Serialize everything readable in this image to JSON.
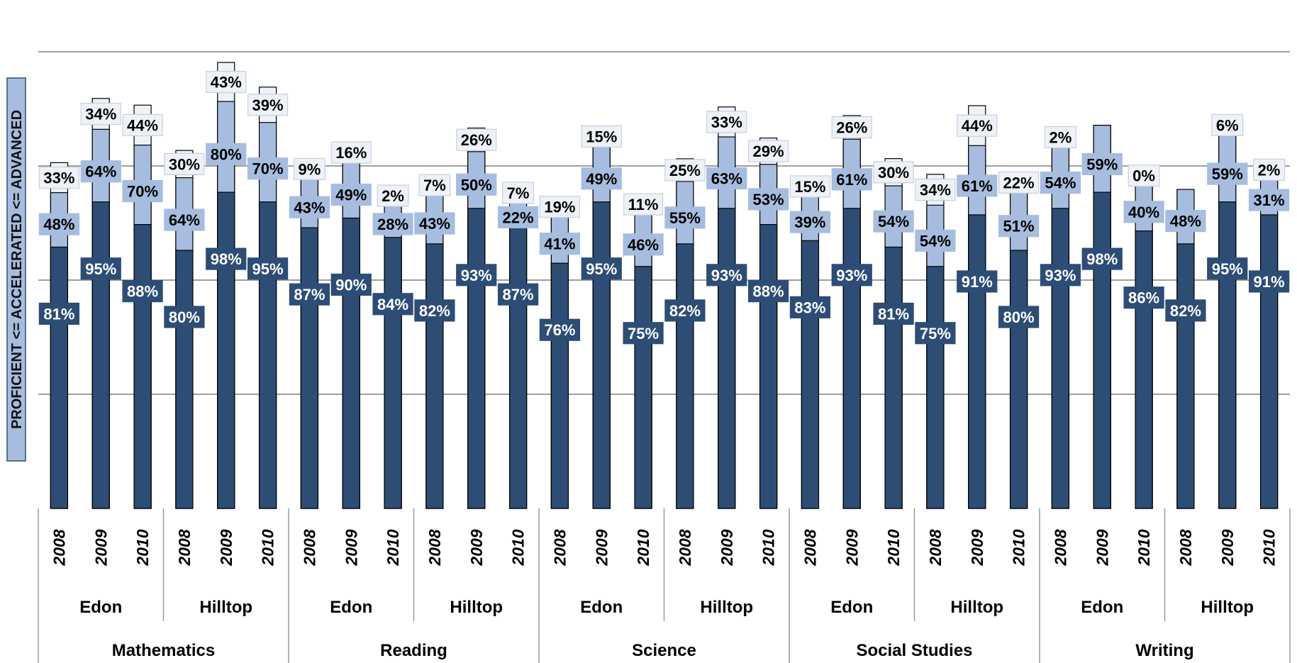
{
  "chart_data": {
    "type": "bar",
    "stacking": "overlapping-cumulative",
    "ylabel": "PROFICIENT <= ACCELERATED <= ADVANCED",
    "grid": true,
    "legend": "none",
    "ylim": [
      0,
      1.35
    ],
    "subjects": [
      {
        "name": "Mathematics",
        "schools": [
          {
            "name": "Edon",
            "years": [
              {
                "year": "2008",
                "proficient": 81,
                "accelerated": 48,
                "advanced": 33
              },
              {
                "year": "2009",
                "proficient": 95,
                "accelerated": 64,
                "advanced": 34
              },
              {
                "year": "2010",
                "proficient": 88,
                "accelerated": 70,
                "advanced": 44
              }
            ]
          },
          {
            "name": "Hilltop",
            "years": [
              {
                "year": "2008",
                "proficient": 80,
                "accelerated": 64,
                "advanced": 30
              },
              {
                "year": "2009",
                "proficient": 98,
                "accelerated": 80,
                "advanced": 43
              },
              {
                "year": "2010",
                "proficient": 95,
                "accelerated": 70,
                "advanced": 39
              }
            ]
          }
        ]
      },
      {
        "name": "Reading",
        "schools": [
          {
            "name": "Edon",
            "years": [
              {
                "year": "2008",
                "proficient": 87,
                "accelerated": 43,
                "advanced": 9
              },
              {
                "year": "2009",
                "proficient": 90,
                "accelerated": 49,
                "advanced": 16
              },
              {
                "year": "2010",
                "proficient": 84,
                "accelerated": 28,
                "advanced": 2
              }
            ]
          },
          {
            "name": "Hilltop",
            "years": [
              {
                "year": "2008",
                "proficient": 82,
                "accelerated": 43,
                "advanced": 7
              },
              {
                "year": "2009",
                "proficient": 93,
                "accelerated": 50,
                "advanced": 26
              },
              {
                "year": "2010",
                "proficient": 87,
                "accelerated": 22,
                "advanced": 7
              }
            ]
          }
        ]
      },
      {
        "name": "Science",
        "schools": [
          {
            "name": "Edon",
            "years": [
              {
                "year": "2008",
                "proficient": 76,
                "accelerated": 41,
                "advanced": 19
              },
              {
                "year": "2009",
                "proficient": 95,
                "accelerated": 49,
                "advanced": 15
              },
              {
                "year": "2010",
                "proficient": 75,
                "accelerated": 46,
                "advanced": 11
              }
            ]
          },
          {
            "name": "Hilltop",
            "years": [
              {
                "year": "2008",
                "proficient": 82,
                "accelerated": 55,
                "advanced": 25
              },
              {
                "year": "2009",
                "proficient": 93,
                "accelerated": 63,
                "advanced": 33
              },
              {
                "year": "2010",
                "proficient": 88,
                "accelerated": 53,
                "advanced": 29
              }
            ]
          }
        ]
      },
      {
        "name": "Social Studies",
        "schools": [
          {
            "name": "Edon",
            "years": [
              {
                "year": "2008",
                "proficient": 83,
                "accelerated": 39,
                "advanced": 15
              },
              {
                "year": "2009",
                "proficient": 93,
                "accelerated": 61,
                "advanced": 26
              },
              {
                "year": "2010",
                "proficient": 81,
                "accelerated": 54,
                "advanced": 30
              }
            ]
          },
          {
            "name": "Hilltop",
            "years": [
              {
                "year": "2008",
                "proficient": 75,
                "accelerated": 54,
                "advanced": 34
              },
              {
                "year": "2009",
                "proficient": 91,
                "accelerated": 61,
                "advanced": 44
              },
              {
                "year": "2010",
                "proficient": 80,
                "accelerated": 51,
                "advanced": 22
              }
            ]
          }
        ]
      },
      {
        "name": "Writing",
        "schools": [
          {
            "name": "Edon",
            "years": [
              {
                "year": "2008",
                "proficient": 93,
                "accelerated": 54,
                "advanced": 2
              },
              {
                "year": "2009",
                "proficient": 98,
                "accelerated": 59,
                "advanced": null
              },
              {
                "year": "2010",
                "proficient": 86,
                "accelerated": 40,
                "advanced": 0
              }
            ]
          },
          {
            "name": "Hilltop",
            "years": [
              {
                "year": "2008",
                "proficient": 82,
                "accelerated": 48,
                "advanced": null
              },
              {
                "year": "2009",
                "proficient": 95,
                "accelerated": 59,
                "advanced": 6
              },
              {
                "year": "2010",
                "proficient": 91,
                "accelerated": 31,
                "advanced": 2
              }
            ]
          }
        ]
      }
    ],
    "colors": {
      "proficient": "#2d4d75",
      "accelerated": "#a7bddf",
      "advanced": "#eef2f8",
      "grid": "#808080",
      "outline": "#000000"
    }
  }
}
